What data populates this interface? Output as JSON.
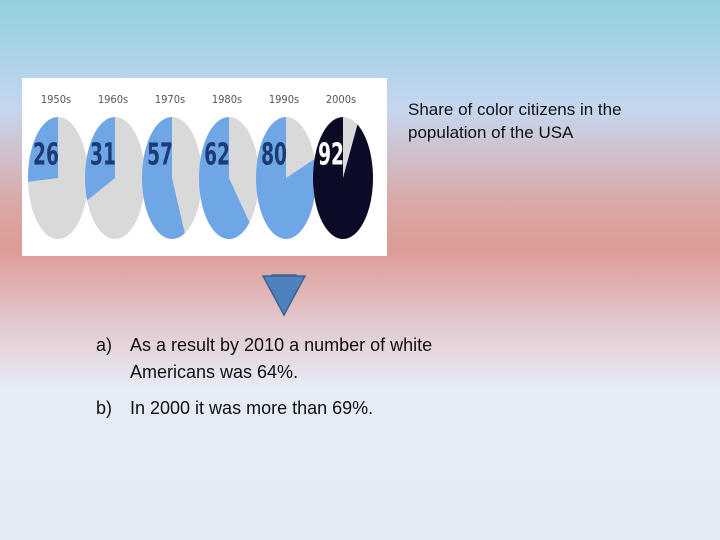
{
  "chart_data": {
    "type": "pie",
    "categories": [
      "1950s",
      "1960s",
      "1970s",
      "1980s",
      "1990s",
      "2000s"
    ],
    "values": [
      26,
      31,
      57,
      62,
      80,
      92
    ],
    "colors": [
      "#6fa6e6",
      "#6fa6e6",
      "#6fa6e6",
      "#6fa6e6",
      "#6fa6e6",
      "#0b0b26"
    ],
    "rest_color": "#d9d9d9"
  },
  "caption": "Share of color citizens in the population of the USA",
  "items": [
    {
      "marker": "a)",
      "lines": [
        "As a result by 2010 a number of white",
        "Americans was 64%."
      ]
    },
    {
      "marker": "b)",
      "lines": [
        "In 2000 it was more than 69%."
      ]
    }
  ]
}
